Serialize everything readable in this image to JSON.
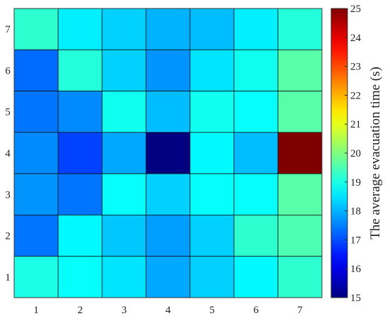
{
  "chart_data": {
    "type": "heatmap",
    "x_categories": [
      "1",
      "2",
      "3",
      "4",
      "5",
      "6",
      "7"
    ],
    "y_categories": [
      "1",
      "2",
      "3",
      "4",
      "5",
      "6",
      "7"
    ],
    "rows_top_to_bottom_y": [
      "7",
      "6",
      "5",
      "4",
      "3",
      "2",
      "1"
    ],
    "values_top_to_bottom": [
      [
        19.2,
        18.6,
        18.3,
        18.0,
        18.1,
        18.6,
        19.1
      ],
      [
        17.3,
        19.1,
        18.3,
        17.7,
        18.5,
        18.9,
        19.6
      ],
      [
        17.4,
        17.6,
        18.9,
        18.1,
        18.9,
        18.8,
        19.6
      ],
      [
        17.6,
        16.9,
        17.9,
        15.0,
        18.7,
        18.1,
        25.0
      ],
      [
        17.7,
        17.4,
        18.8,
        18.3,
        18.8,
        18.8,
        19.6
      ],
      [
        17.4,
        18.7,
        18.2,
        17.8,
        18.3,
        19.2,
        19.5
      ],
      [
        19.0,
        18.8,
        18.5,
        17.9,
        18.3,
        18.7,
        19.2
      ]
    ],
    "colorbar": {
      "label": "The average evacuation time (s)",
      "min": 15,
      "max": 25,
      "ticks": [
        "15",
        "16",
        "17",
        "18",
        "19",
        "20",
        "21",
        "22",
        "23",
        "24",
        "25"
      ],
      "colormap": "jet"
    },
    "grid": true
  }
}
